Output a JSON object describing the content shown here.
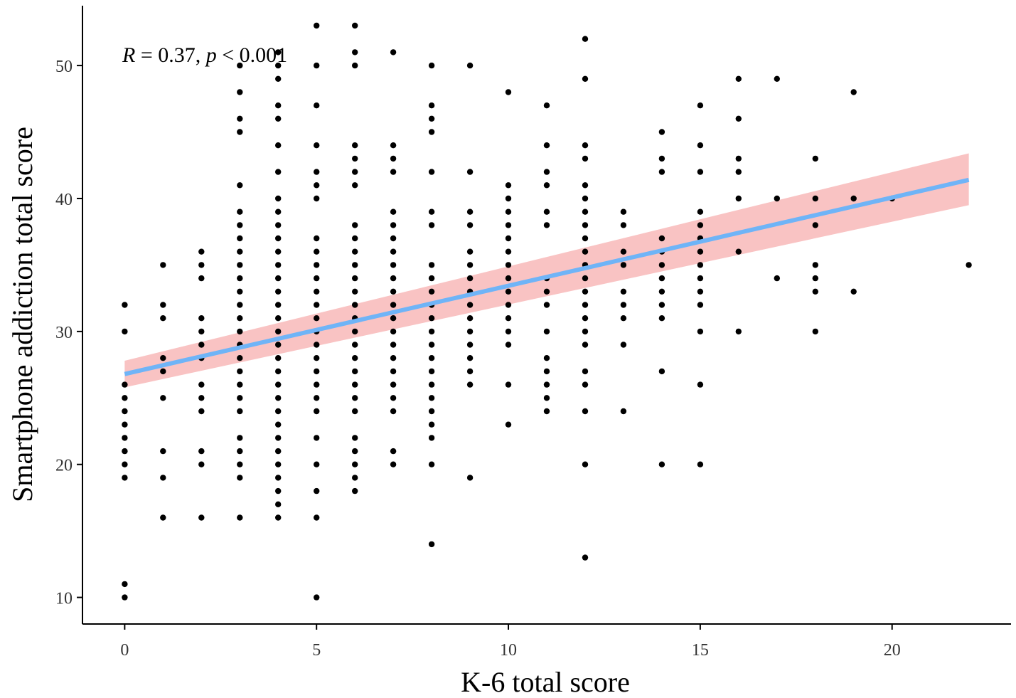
{
  "chart_data": {
    "type": "scatter",
    "xlabel": "K-6 total score",
    "ylabel": "Smartphone addiction total score",
    "xlim": [
      -1.1,
      23.1
    ],
    "ylim": [
      8,
      54.5
    ],
    "x_ticks": [
      "0",
      "5",
      "10",
      "15",
      "20"
    ],
    "y_ticks": [
      "10",
      "20",
      "30",
      "40",
      "50"
    ],
    "x_tick_values": [
      0,
      5,
      10,
      15,
      20
    ],
    "y_tick_values": [
      10,
      20,
      30,
      40,
      50
    ],
    "annotation": {
      "r_symbol": "R",
      "r_text": " = 0.37, ",
      "p_symbol": "p",
      "p_text": " < 0.001"
    },
    "grid": false,
    "colors": {
      "points": "#000000",
      "line": "#6fb4f7",
      "band": "#f8b9b9",
      "axis": "#000000",
      "tick_text": "#333333"
    },
    "regression": {
      "x": [
        0,
        22
      ],
      "y": [
        26.8,
        41.4
      ],
      "ci_low": [
        25.8,
        39.5
      ],
      "ci_high": [
        27.8,
        43.4
      ]
    },
    "groups": [
      {
        "x": 0,
        "y": [
          10,
          11,
          19,
          20,
          21,
          22,
          23,
          24,
          25,
          26,
          30,
          32
        ]
      },
      {
        "x": 1,
        "y": [
          16,
          19,
          21,
          25,
          27,
          28,
          31,
          32,
          35
        ]
      },
      {
        "x": 2,
        "y": [
          16,
          20,
          21,
          24,
          25,
          26,
          28,
          29,
          30,
          31,
          34,
          35,
          36
        ]
      },
      {
        "x": 3,
        "y": [
          16,
          19,
          20,
          21,
          22,
          24,
          25,
          26,
          27,
          28,
          29,
          30,
          31,
          32,
          33,
          34,
          35,
          36,
          37,
          38,
          39,
          41,
          45,
          46,
          48,
          50
        ]
      },
      {
        "x": 4,
        "y": [
          16,
          17,
          18,
          19,
          20,
          21,
          22,
          23,
          24,
          25,
          26,
          27,
          28,
          29,
          30,
          31,
          32,
          33,
          34,
          35,
          36,
          37,
          38,
          39,
          40,
          42,
          44,
          46,
          47,
          49,
          50,
          51
        ]
      },
      {
        "x": 5,
        "y": [
          10,
          16,
          18,
          20,
          22,
          24,
          25,
          26,
          27,
          28,
          29,
          30,
          31,
          32,
          33,
          34,
          35,
          36,
          37,
          40,
          41,
          42,
          44,
          47,
          50,
          53
        ]
      },
      {
        "x": 6,
        "y": [
          18,
          19,
          20,
          21,
          22,
          24,
          25,
          26,
          27,
          28,
          29,
          30,
          31,
          32,
          33,
          34,
          35,
          36,
          37,
          38,
          41,
          42,
          43,
          44,
          50,
          51,
          53
        ]
      },
      {
        "x": 7,
        "y": [
          20,
          21,
          24,
          25,
          26,
          27,
          28,
          29,
          30,
          31,
          32,
          33,
          34,
          35,
          36,
          37,
          38,
          39,
          42,
          43,
          44,
          51
        ]
      },
      {
        "x": 8,
        "y": [
          14,
          20,
          22,
          23,
          24,
          25,
          26,
          27,
          28,
          29,
          30,
          31,
          32,
          33,
          34,
          35,
          38,
          39,
          42,
          45,
          46,
          47,
          50
        ]
      },
      {
        "x": 9,
        "y": [
          19,
          26,
          27,
          28,
          29,
          30,
          31,
          32,
          33,
          34,
          35,
          36,
          38,
          39,
          42,
          50
        ]
      },
      {
        "x": 10,
        "y": [
          23,
          26,
          29,
          30,
          31,
          32,
          33,
          34,
          35,
          36,
          37,
          38,
          39,
          40,
          41,
          48
        ]
      },
      {
        "x": 11,
        "y": [
          24,
          25,
          26,
          27,
          28,
          30,
          32,
          33,
          34,
          38,
          39,
          41,
          42,
          44,
          47
        ]
      },
      {
        "x": 12,
        "y": [
          13,
          20,
          24,
          26,
          27,
          29,
          30,
          31,
          32,
          33,
          34,
          35,
          36,
          37,
          38,
          39,
          40,
          41,
          43,
          44,
          49,
          52
        ]
      },
      {
        "x": 13,
        "y": [
          24,
          29,
          31,
          32,
          33,
          35,
          36,
          38,
          39
        ]
      },
      {
        "x": 14,
        "y": [
          20,
          27,
          31,
          32,
          33,
          34,
          35,
          36,
          37,
          42,
          43,
          45
        ]
      },
      {
        "x": 15,
        "y": [
          20,
          26,
          30,
          32,
          33,
          34,
          35,
          36,
          37,
          38,
          39,
          42,
          44,
          47
        ]
      },
      {
        "x": 16,
        "y": [
          30,
          36,
          40,
          42,
          43,
          46,
          49
        ]
      },
      {
        "x": 17,
        "y": [
          34,
          40,
          49
        ]
      },
      {
        "x": 18,
        "y": [
          30,
          33,
          34,
          35,
          38,
          40,
          43
        ]
      },
      {
        "x": 19,
        "y": [
          33,
          40,
          48
        ]
      },
      {
        "x": 20,
        "y": [
          40
        ]
      },
      {
        "x": 22,
        "y": [
          35
        ]
      }
    ]
  }
}
